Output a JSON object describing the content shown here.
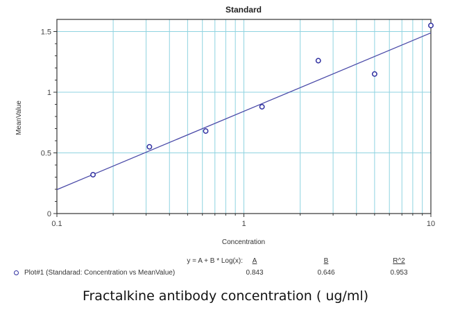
{
  "chart_data": {
    "type": "scatter",
    "title": "Standard",
    "xlabel": "Concentration",
    "ylabel": "MeanValue",
    "xscale": "log",
    "xlim": [
      0.1,
      10
    ],
    "ylim": [
      0,
      1.6
    ],
    "x_ticks": [
      "0.1",
      "1",
      "10"
    ],
    "y_ticks": [
      "0",
      "0.5",
      "1",
      "1.5"
    ],
    "grid": true,
    "series": [
      {
        "name": "Plot#1 (Standarad: Concentration vs MeanValue)",
        "marker": "open-circle",
        "color": "#2f2fa0",
        "x": [
          0.156,
          0.3125,
          0.625,
          1.25,
          2.5,
          5,
          10
        ],
        "y": [
          0.32,
          0.55,
          0.68,
          0.88,
          1.26,
          1.15,
          1.55
        ]
      }
    ],
    "fit": {
      "equation": "y = A + B * Log(x):",
      "A": 0.843,
      "B": 0.646,
      "R2": 0.953,
      "color": "#4a4aa8"
    },
    "legend_position": "bottom"
  },
  "legend": {
    "equation": "y = A + B * Log(x):",
    "headers": [
      "A",
      "B",
      "R^2"
    ],
    "series_label": "Plot#1 (Standarad: Concentration vs MeanValue)",
    "values": [
      "0.843",
      "0.646",
      "0.953"
    ]
  },
  "caption": "Fractalkine  antibody concentration  ( ug/ml)",
  "colors": {
    "grid": "#8fd3e0",
    "axis": "#333333",
    "point": "#2f2fa0",
    "fit_line": "#4a4aa8"
  }
}
